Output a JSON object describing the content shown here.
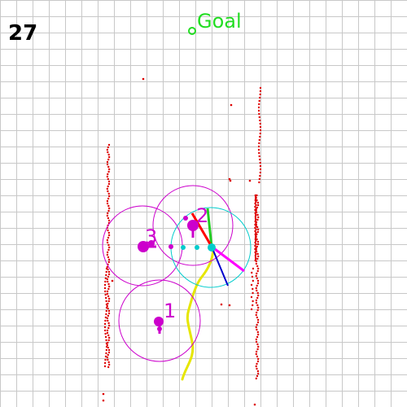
{
  "step_counter": "27",
  "goal": {
    "label": "Goal"
  },
  "agents": [
    {
      "label": "1"
    },
    {
      "label": "2"
    },
    {
      "label": "3"
    }
  ],
  "colors": {
    "grid": "#c8c8c8",
    "obstacle": "#dd0000",
    "agent": "#cc00cc",
    "robot": "#00cccc",
    "goal": "#22dd22",
    "path": "#e6e600",
    "heading_green": "#22cc22",
    "heading_blue": "#0000cc",
    "heading_red": "#ff0000",
    "heading_magenta": "#ff00ff"
  }
}
